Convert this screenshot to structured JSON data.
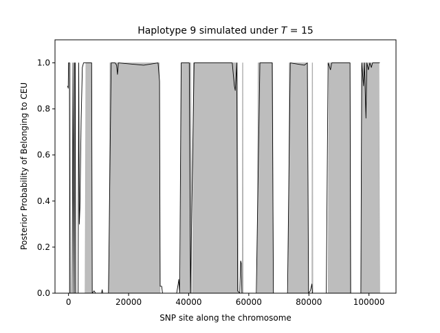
{
  "chart_data": {
    "type": "area",
    "title_prefix": "Haplotype 9 simulated under ",
    "title_var": "T",
    "title_suffix": " =  15",
    "xlabel": "SNP site along the chromosome",
    "ylabel": "Posterior Probability of Belonging to CEU",
    "xlim": [
      -4500,
      109000
    ],
    "ylim": [
      0,
      1.1
    ],
    "xticks": [
      0,
      20000,
      40000,
      60000,
      80000,
      100000
    ],
    "yticks": [
      0.0,
      0.2,
      0.4,
      0.6,
      0.8,
      1.0
    ],
    "xtick_labels": [
      "0",
      "20000",
      "40000",
      "60000",
      "80000",
      "100000"
    ],
    "ytick_labels": [
      "0.0",
      "0.2",
      "0.4",
      "0.6",
      "0.8",
      "1.0"
    ],
    "grid": false,
    "true_ceu_color": "#bdbdbd",
    "posterior_color": "#000000",
    "true_ceu_regions": [
      [
        200,
        700
      ],
      [
        2000,
        2400
      ],
      [
        5500,
        7800
      ],
      [
        13500,
        30500
      ],
      [
        37300,
        41000
      ],
      [
        41300,
        56500
      ],
      [
        57800,
        58000
      ],
      [
        62800,
        68200
      ],
      [
        73200,
        79800
      ],
      [
        81000,
        81200
      ],
      [
        86400,
        94000
      ],
      [
        97500,
        103600
      ]
    ],
    "posterior": [
      [
        -300,
        0.9
      ],
      [
        -100,
        0.89
      ],
      [
        0,
        1.0
      ],
      [
        300,
        1.0
      ],
      [
        500,
        0.0
      ],
      [
        1200,
        0.0
      ],
      [
        1500,
        1.0
      ],
      [
        1800,
        0.0
      ],
      [
        2000,
        1.0
      ],
      [
        2200,
        1.0
      ],
      [
        2400,
        0.0
      ],
      [
        3200,
        0.0
      ],
      [
        3400,
        1.0
      ],
      [
        3600,
        0.3
      ],
      [
        3800,
        0.37
      ],
      [
        4200,
        0.75
      ],
      [
        4600,
        0.98
      ],
      [
        5000,
        1.0
      ],
      [
        7700,
        1.0
      ],
      [
        7900,
        0.0
      ],
      [
        8500,
        0.01
      ],
      [
        9000,
        0.0
      ],
      [
        11000,
        0.0
      ],
      [
        11200,
        0.015
      ],
      [
        11400,
        0.0
      ],
      [
        13300,
        0.0
      ],
      [
        14200,
        1.0
      ],
      [
        15500,
        1.0
      ],
      [
        16000,
        0.99
      ],
      [
        16300,
        0.95
      ],
      [
        16600,
        1.0
      ],
      [
        25000,
        0.99
      ],
      [
        29800,
        1.0
      ],
      [
        30300,
        0.92
      ],
      [
        30500,
        0.03
      ],
      [
        31000,
        0.03
      ],
      [
        31300,
        0.0
      ],
      [
        36000,
        0.0
      ],
      [
        36500,
        0.04
      ],
      [
        36700,
        0.06
      ],
      [
        37000,
        0.0
      ],
      [
        37500,
        1.0
      ],
      [
        40200,
        1.0
      ],
      [
        40600,
        0.0
      ],
      [
        41800,
        1.0
      ],
      [
        54500,
        1.0
      ],
      [
        55200,
        0.9
      ],
      [
        55500,
        0.88
      ],
      [
        56000,
        1.0
      ],
      [
        56300,
        0.01
      ],
      [
        57000,
        0.0
      ],
      [
        57300,
        0.14
      ],
      [
        57500,
        0.13
      ],
      [
        57700,
        0.0
      ],
      [
        62500,
        0.0
      ],
      [
        63700,
        1.0
      ],
      [
        67800,
        1.0
      ],
      [
        68200,
        0.0
      ],
      [
        72900,
        0.0
      ],
      [
        73800,
        1.0
      ],
      [
        78500,
        0.99
      ],
      [
        79500,
        1.0
      ],
      [
        79900,
        0.0
      ],
      [
        80500,
        0.01
      ],
      [
        81000,
        0.04
      ],
      [
        81200,
        0.0
      ],
      [
        85800,
        0.0
      ],
      [
        86400,
        1.0
      ],
      [
        87200,
        0.97
      ],
      [
        87600,
        1.0
      ],
      [
        93700,
        1.0
      ],
      [
        93900,
        0.0
      ],
      [
        97300,
        0.0
      ],
      [
        97600,
        1.0
      ],
      [
        98200,
        0.9
      ],
      [
        98500,
        1.0
      ],
      [
        99000,
        0.76
      ],
      [
        99300,
        1.0
      ],
      [
        99800,
        0.97
      ],
      [
        100300,
        1.0
      ],
      [
        100800,
        0.98
      ],
      [
        101200,
        1.0
      ],
      [
        103600,
        1.0
      ]
    ]
  }
}
